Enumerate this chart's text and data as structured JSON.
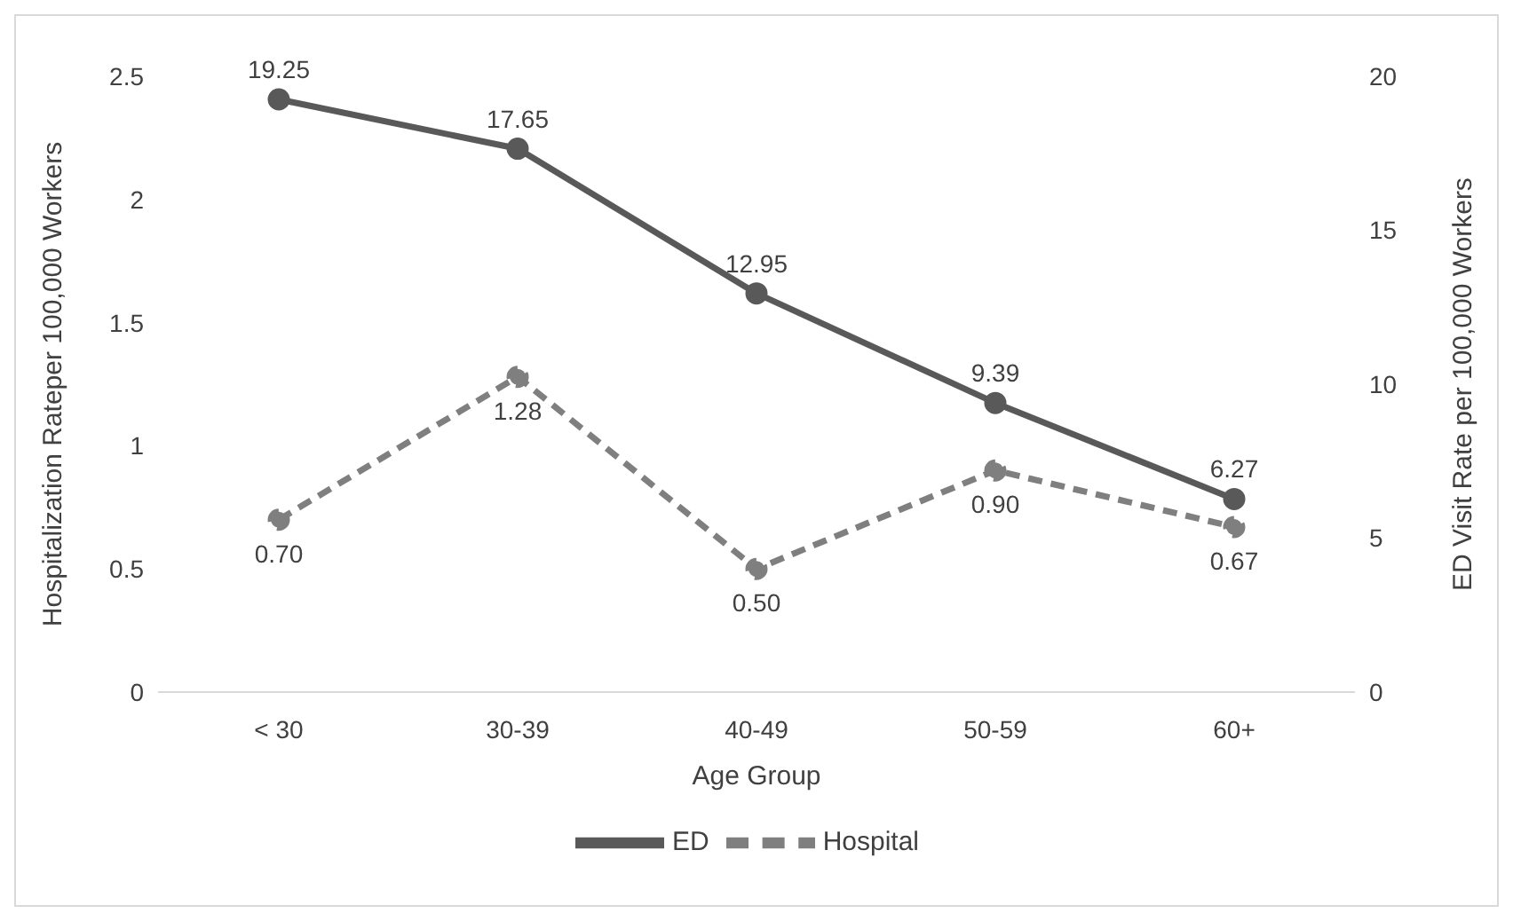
{
  "chart_data": {
    "type": "line",
    "xlabel": "Age Group",
    "ylabel": "Hospitalization Rateper 100,000 Workers",
    "y2label": "ED Visit Rate per 100,000 Workers",
    "categories": [
      "< 30",
      "30-39",
      "40-49",
      "50-59",
      "60+"
    ],
    "series": [
      {
        "name": "ED",
        "color": "#595959",
        "axis": "y2",
        "line_style": "solid",
        "values": [
          19.25,
          17.65,
          12.95,
          9.39,
          6.27
        ],
        "value_labels": [
          "19.25",
          "17.65",
          "12.95",
          "9.39",
          "6.27"
        ]
      },
      {
        "name": "Hospital",
        "color": "#7f7f7f",
        "axis": "y",
        "line_style": "dashed",
        "values": [
          0.7,
          1.28,
          0.5,
          0.9,
          0.67
        ],
        "value_labels": [
          "0.70",
          "1.28",
          "0.50",
          "0.90",
          "0.67"
        ]
      }
    ],
    "ylim": [
      0,
      2.5
    ],
    "yticks": [
      0,
      0.5,
      1,
      1.5,
      2,
      2.5
    ],
    "y2lim": [
      0,
      20
    ],
    "y2ticks": [
      0,
      5,
      10,
      15,
      20
    ],
    "marker": "circle",
    "legend": "bottom",
    "grid": false
  }
}
